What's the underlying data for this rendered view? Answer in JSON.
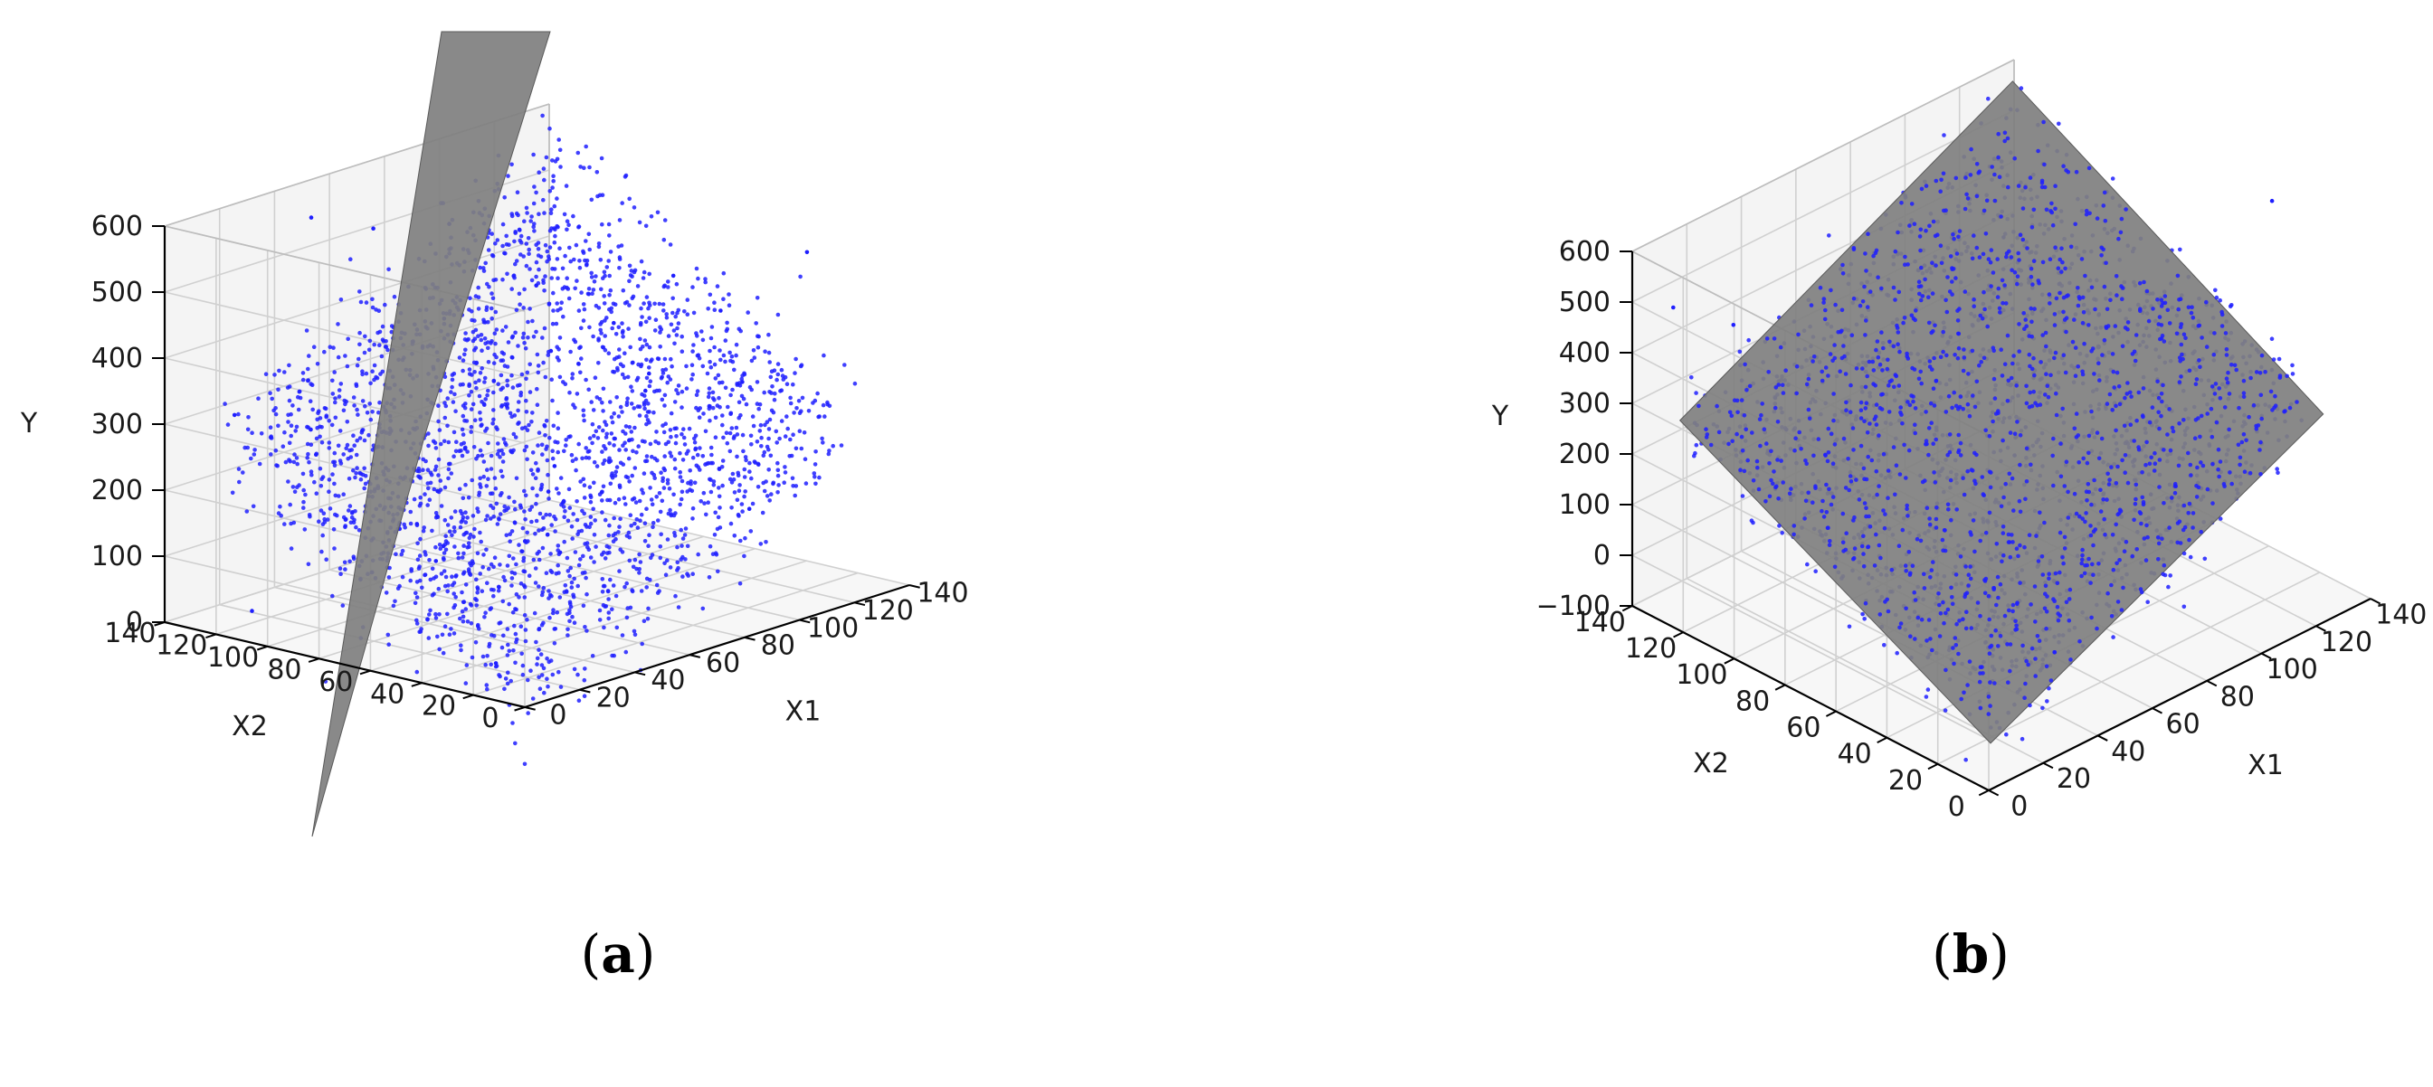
{
  "chart_data": [
    {
      "type": "scatter",
      "subtype": "3d-scatter-with-fitted-plane",
      "caption_letter": "a",
      "xlabel": "X1",
      "ylabel": "X2",
      "zlabel": "Y",
      "x_ticks": [
        "0",
        "20",
        "40",
        "60",
        "80",
        "100",
        "120",
        "140"
      ],
      "y_ticks": [
        "0",
        "20",
        "40",
        "60",
        "80",
        "100",
        "120",
        "140"
      ],
      "z_ticks": [
        "0",
        "100",
        "200",
        "300",
        "400",
        "500",
        "600"
      ],
      "xlim": [
        0,
        140
      ],
      "ylim": [
        0,
        140
      ],
      "zlim": [
        0,
        600
      ],
      "grid": true,
      "point_color": "#1f1fff",
      "plane_color": "#7f7f7f",
      "plane_fit": "poor",
      "approx_point_count": 2500
    },
    {
      "type": "scatter",
      "subtype": "3d-scatter-with-fitted-plane",
      "caption_letter": "b",
      "xlabel": "X1",
      "ylabel": "X2",
      "zlabel": "Y",
      "x_ticks": [
        "0",
        "20",
        "40",
        "60",
        "80",
        "100",
        "120",
        "140"
      ],
      "y_ticks": [
        "0",
        "20",
        "40",
        "60",
        "80",
        "100",
        "120",
        "140"
      ],
      "z_ticks": [
        "−100",
        "0",
        "100",
        "200",
        "300",
        "400",
        "500",
        "600"
      ],
      "xlim": [
        0,
        140
      ],
      "ylim": [
        0,
        140
      ],
      "zlim": [
        -100,
        600
      ],
      "grid": true,
      "point_color": "#1f1fff",
      "plane_color": "#7f7f7f",
      "plane_fit": "good",
      "approx_point_count": 2500
    }
  ],
  "captions": {
    "a": {
      "open": "(",
      "letter": "a",
      "close": ")"
    },
    "b": {
      "open": "(",
      "letter": "b",
      "close": ")"
    }
  }
}
